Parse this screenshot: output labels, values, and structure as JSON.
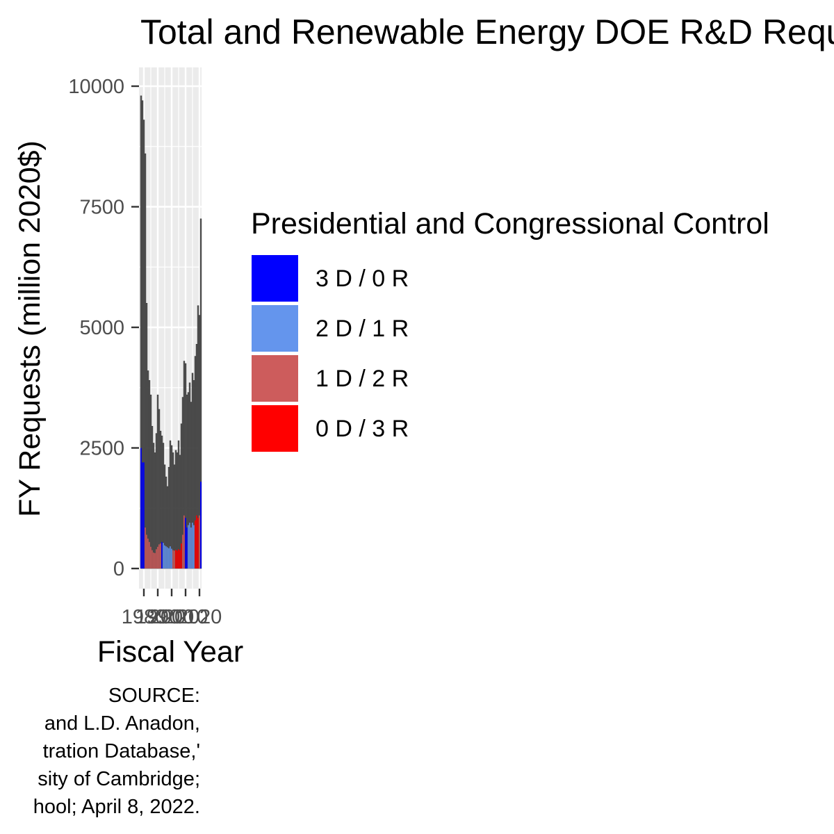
{
  "chart_data": {
    "type": "bar",
    "title": "Total and Renewable Energy DOE R&D Requests",
    "xlabel": "Fiscal Year",
    "ylabel": "FY Requests (million 2020$)",
    "x_tick_labels": [
      "1980",
      "1990",
      "2000",
      "2010",
      "2020"
    ],
    "y_tick_labels": [
      "0",
      "2500",
      "5000",
      "7500",
      "10000"
    ],
    "ylim": [
      0,
      10300
    ],
    "xlim": [
      1976.5,
      2021.5
    ],
    "grid": true,
    "panel_background": "#ebebeb",
    "legend": {
      "title": "Presidential and Congressional Control",
      "position": "right",
      "entries": [
        {
          "label": "3 D / 0 R",
          "color": "#0000ff"
        },
        {
          "label": "2 D / 1 R",
          "color": "#6495ed"
        },
        {
          "label": "1 D / 2 R",
          "color": "#cd5c5c"
        },
        {
          "label": "0 D / 3 R",
          "color": "#ff0000"
        }
      ]
    },
    "years": [
      1978,
      1979,
      1980,
      1981,
      1982,
      1983,
      1984,
      1985,
      1986,
      1987,
      1988,
      1989,
      1990,
      1991,
      1992,
      1993,
      1994,
      1995,
      1996,
      1997,
      1998,
      1999,
      2000,
      2001,
      2002,
      2003,
      2004,
      2005,
      2006,
      2007,
      2008,
      2009,
      2010,
      2011,
      2012,
      2013,
      2014,
      2015,
      2016,
      2017,
      2018,
      2019,
      2020,
      2021
    ],
    "series": [
      {
        "name": "Total",
        "values": [
          9800,
          9700,
          9300,
          8600,
          5500,
          4100,
          3900,
          3600,
          2950,
          2600,
          2400,
          2800,
          3600,
          3300,
          2850,
          2750,
          2600,
          2150,
          1900,
          1700,
          2100,
          2650,
          2550,
          2400,
          2150,
          2450,
          2400,
          2650,
          2350,
          3000,
          3550,
          4300,
          4250,
          3600,
          3650,
          3850,
          3450,
          4050,
          3900,
          4400,
          4650,
          5450,
          5250,
          7250
        ]
      },
      {
        "name": "Renewable",
        "values": [
          2500,
          2200,
          2200,
          850,
          700,
          620,
          550,
          450,
          380,
          330,
          320,
          400,
          450,
          500,
          520,
          550,
          530,
          480,
          460,
          440,
          420,
          460,
          410,
          380,
          370,
          390,
          370,
          400,
          380,
          520,
          700,
          1100,
          1050,
          850,
          900,
          950,
          850,
          950,
          900,
          1000,
          1100,
          1050,
          1100,
          1800
        ]
      }
    ],
    "control_by_year": [
      "3 D / 0 R",
      "3 D / 0 R",
      "3 D / 0 R",
      "1 D / 2 R",
      "1 D / 2 R",
      "1 D / 2 R",
      "1 D / 2 R",
      "1 D / 2 R",
      "1 D / 2 R",
      "1 D / 2 R",
      "1 D / 2 R",
      "1 D / 2 R",
      "1 D / 2 R",
      "1 D / 2 R",
      "1 D / 2 R",
      "3 D / 0 R",
      "2 D / 1 R",
      "2 D / 1 R",
      "2 D / 1 R",
      "2 D / 1 R",
      "2 D / 1 R",
      "2 D / 1 R",
      "2 D / 1 R",
      "1 D / 2 R",
      "1 D / 2 R",
      "0 D / 3 R",
      "0 D / 3 R",
      "0 D / 3 R",
      "0 D / 3 R",
      "0 D / 3 R",
      "1 D / 2 R",
      "1 D / 2 R",
      "3 D / 0 R",
      "3 D / 0 R",
      "2 D / 1 R",
      "2 D / 1 R",
      "2 D / 1 R",
      "2 D / 1 R",
      "2 D / 1 R",
      "0 D / 3 R",
      "0 D / 3 R",
      "0 D / 3 R",
      "1 D / 2 R",
      "3 D / 0 R"
    ]
  },
  "caption_lines": [
    "SOURCE:",
    "and L.D. Anadon,",
    "tration Database,'",
    "sity of Cambridge;",
    "hool; April 8, 2022."
  ]
}
